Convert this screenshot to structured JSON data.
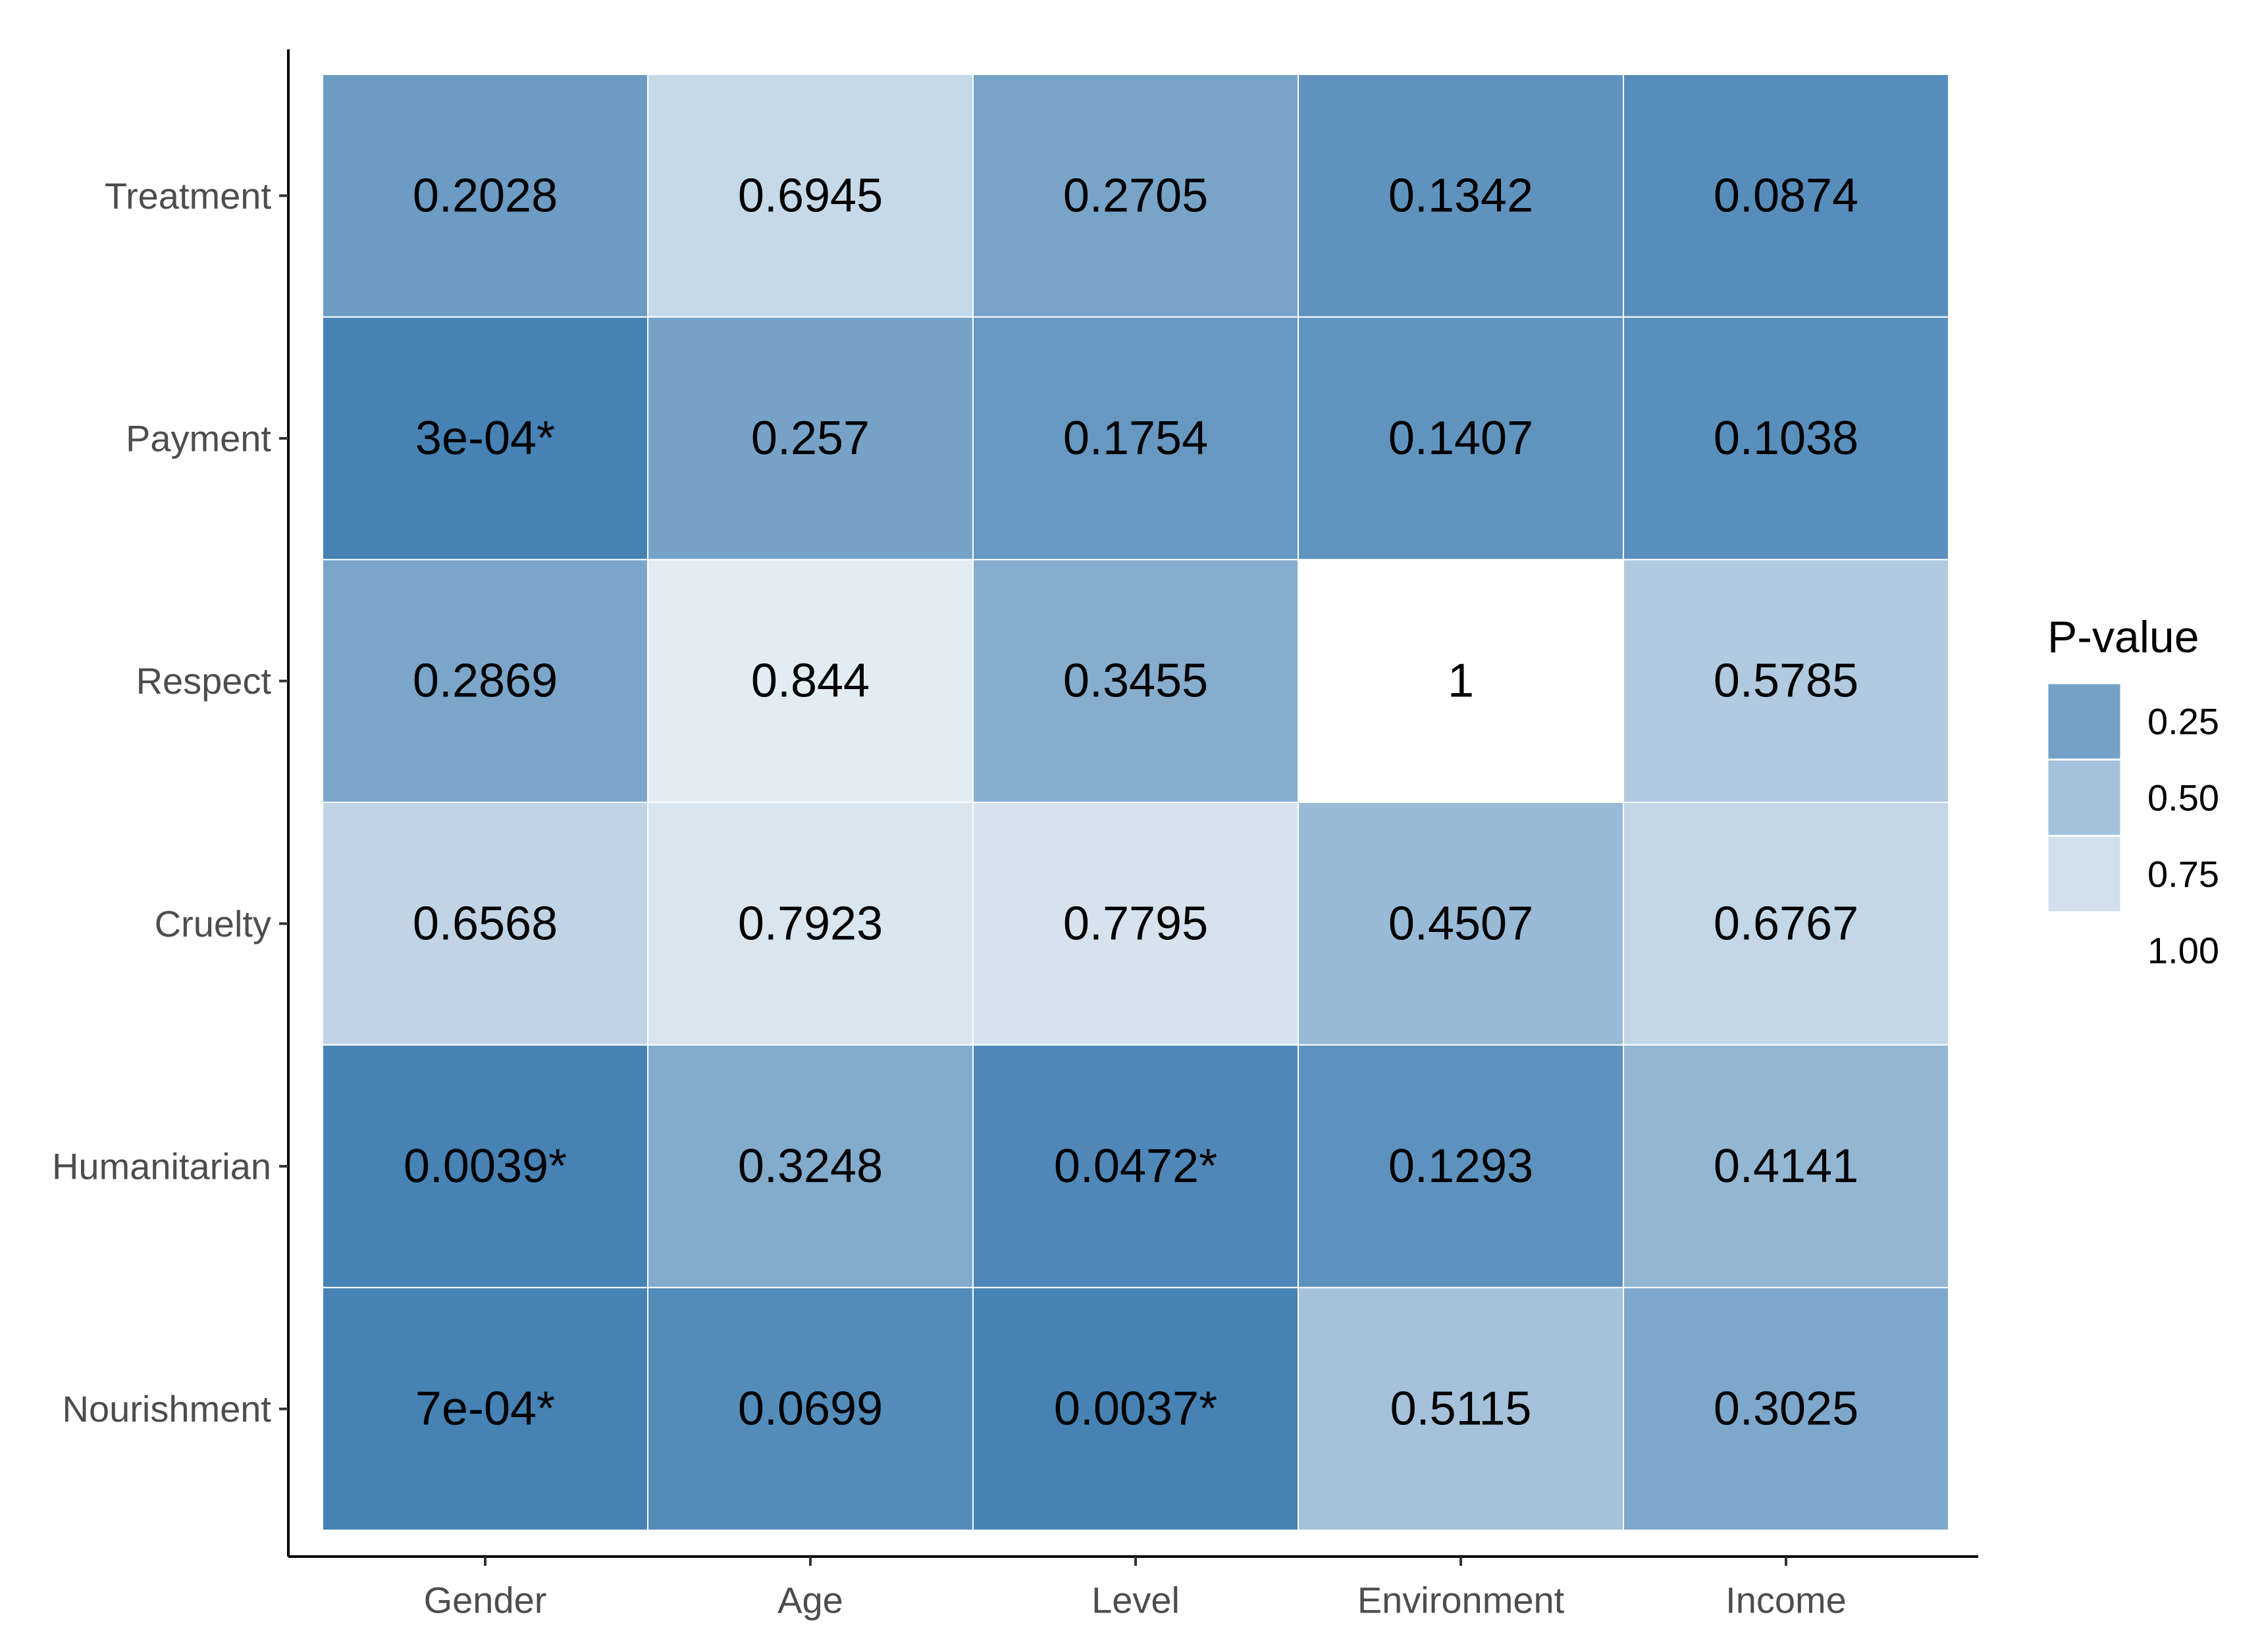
{
  "chart_data": {
    "type": "heatmap",
    "x_categories": [
      "Gender",
      "Age",
      "Level",
      "Environment",
      "Income"
    ],
    "y_categories": [
      "Treatment",
      "Payment",
      "Respect",
      "Cruelty",
      "Humanitarian",
      "Nourishment"
    ],
    "values": [
      [
        0.2028,
        0.6945,
        0.2705,
        0.1342,
        0.0874
      ],
      [
        0.0003,
        0.257,
        0.1754,
        0.1407,
        0.1038
      ],
      [
        0.2869,
        0.844,
        0.3455,
        1,
        0.5785
      ],
      [
        0.6568,
        0.7923,
        0.7795,
        0.4507,
        0.6767
      ],
      [
        0.0039,
        0.3248,
        0.0472,
        0.1293,
        0.4141
      ],
      [
        0.0007,
        0.0699,
        0.0037,
        0.5115,
        0.3025
      ]
    ],
    "labels": [
      [
        "0.2028",
        "0.6945",
        "0.2705",
        "0.1342",
        "0.0874"
      ],
      [
        "3e-04*",
        "0.257",
        "0.1754",
        "0.1407",
        "0.1038"
      ],
      [
        "0.2869",
        "0.844",
        "0.3455",
        "1",
        "0.5785"
      ],
      [
        "0.6568",
        "0.7923",
        "0.7795",
        "0.4507",
        "0.6767"
      ],
      [
        "0.0039*",
        "0.3248",
        "0.0472*",
        "0.1293",
        "0.4141"
      ],
      [
        "7e-04*",
        "0.0699",
        "0.0037*",
        "0.5115",
        "0.3025"
      ]
    ],
    "color_scale": {
      "low": "#4682b4",
      "high": "#ffffff",
      "domain": [
        0,
        1
      ]
    },
    "legend": {
      "title": "P-value",
      "position": "right",
      "breaks": [
        0.25,
        0.5,
        0.75,
        1.0
      ],
      "break_labels": [
        "0.25",
        "0.50",
        "0.75",
        "1.00"
      ]
    },
    "grid": false
  }
}
